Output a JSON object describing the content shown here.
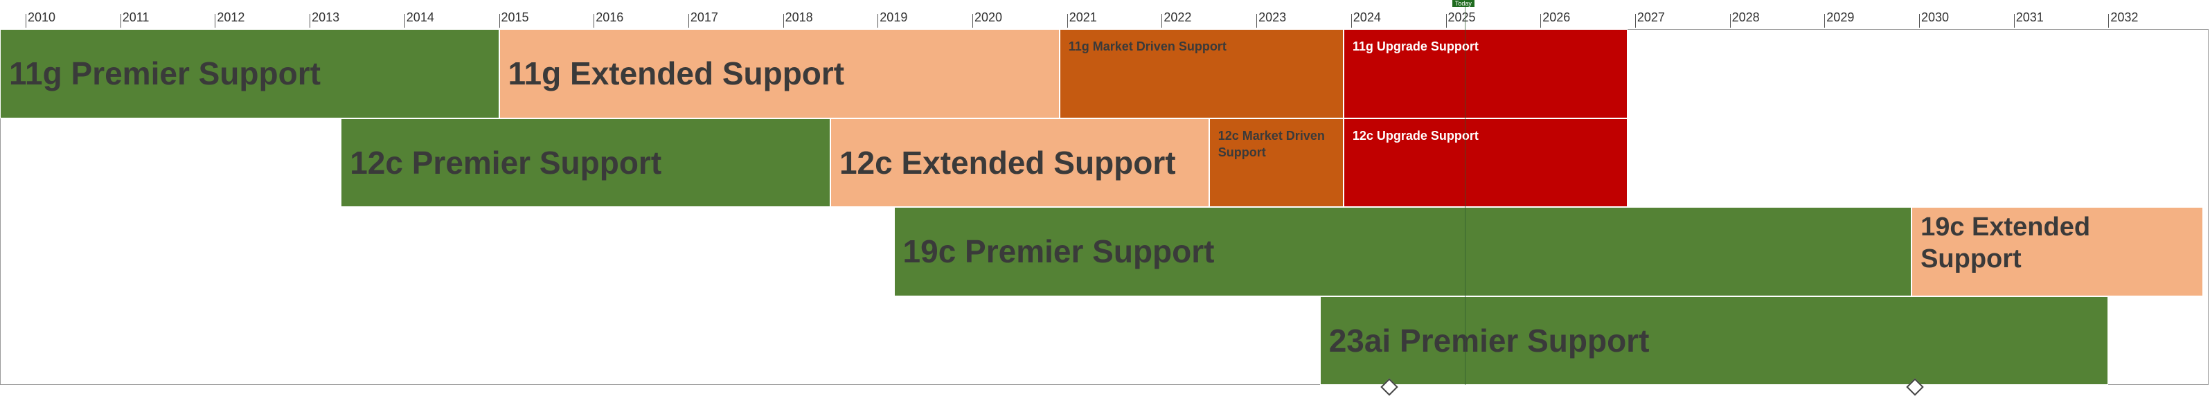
{
  "chart_data": {
    "type": "gantt",
    "x_range": [
      2010,
      2033
    ],
    "tick_labels": [
      "2010",
      "2011",
      "2012",
      "2013",
      "2014",
      "2015",
      "2016",
      "2017",
      "2018",
      "2019",
      "2020",
      "2021",
      "2022",
      "2023",
      "2024",
      "2025",
      "2026",
      "2027",
      "2028",
      "2029",
      "2030",
      "2031",
      "2032"
    ],
    "today_label": "Today",
    "today": 2025.2,
    "bars": [
      {
        "label": "11g Premier Support",
        "start": 2009.7,
        "end": 2015.0,
        "row": 0,
        "color": "#548235",
        "style": "big"
      },
      {
        "label": "11g Extended Support",
        "start": 2015.0,
        "end": 2020.92,
        "row": 0,
        "color": "#f4b183",
        "style": "big"
      },
      {
        "label": "11g Market Driven Support",
        "start": 2020.92,
        "end": 2023.92,
        "row": 0,
        "color": "#c55a11",
        "style": "small"
      },
      {
        "label": "11g Upgrade Support",
        "start": 2023.92,
        "end": 2026.92,
        "row": 0,
        "color": "#c00000",
        "style": "small-light"
      },
      {
        "label": "12c Premier Support",
        "start": 2013.33,
        "end": 2018.5,
        "row": 1,
        "color": "#548235",
        "style": "big"
      },
      {
        "label": "12c Extended Support",
        "start": 2018.5,
        "end": 2022.5,
        "row": 1,
        "color": "#f4b183",
        "style": "big"
      },
      {
        "label": "12c Market Driven Support",
        "start": 2022.5,
        "end": 2023.92,
        "row": 1,
        "color": "#c55a11",
        "style": "small"
      },
      {
        "label": "12c Upgrade Support",
        "start": 2023.92,
        "end": 2026.92,
        "row": 1,
        "color": "#c00000",
        "style": "small-light"
      },
      {
        "label": "19c Premier Support",
        "start": 2019.17,
        "end": 2029.92,
        "row": 2,
        "color": "#548235",
        "style": "big"
      },
      {
        "label": "19c Extended Support",
        "start": 2029.92,
        "end": 2033.0,
        "row": 2,
        "color": "#f4b183",
        "style": "big-wrap"
      },
      {
        "label": "23ai Premier Support",
        "start": 2023.67,
        "end": 2032.0,
        "row": 3,
        "color": "#548235",
        "style": "big"
      }
    ],
    "milestones": [
      2024.4,
      2029.95
    ]
  }
}
